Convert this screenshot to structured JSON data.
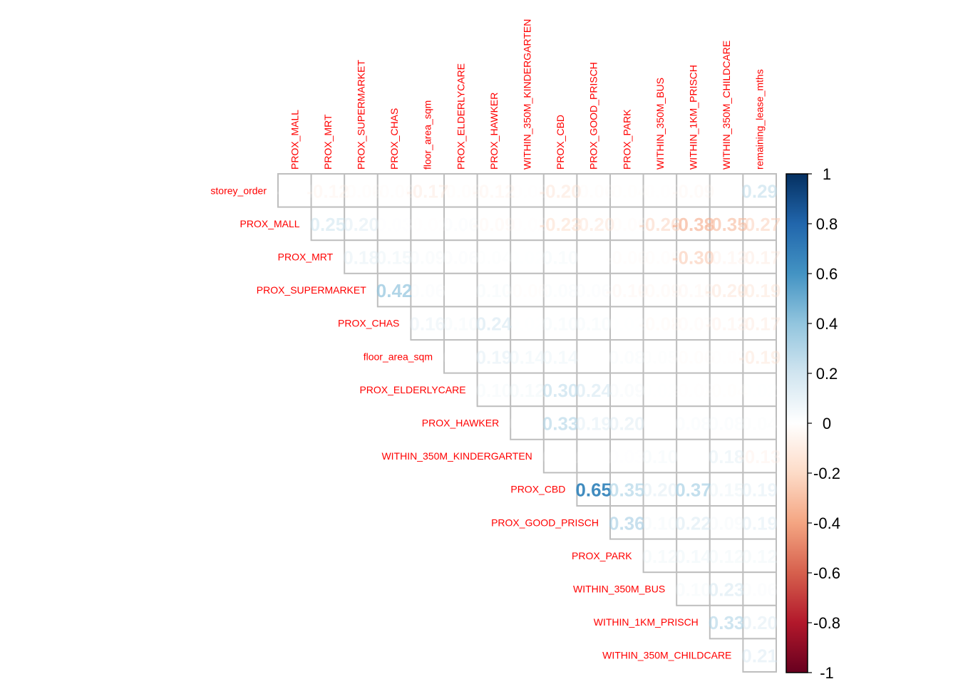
{
  "chart_data": {
    "type": "heatmap",
    "title": "",
    "subtype": "correlation-matrix-upper",
    "grid": true,
    "legend": "right",
    "row_labels": [
      "storey_order",
      "PROX_MALL",
      "PROX_MRT",
      "PROX_SUPERMARKET",
      "PROX_CHAS",
      "floor_area_sqm",
      "PROX_ELDERLYCARE",
      "PROX_HAWKER",
      "WITHIN_350M_KINDERGARTEN",
      "PROX_CBD",
      "PROX_GOOD_PRISCH",
      "PROX_PARK",
      "WITHIN_350M_BUS",
      "WITHIN_1KM_PRISCH",
      "WITHIN_350M_CHILDCARE"
    ],
    "col_labels": [
      "PROX_MALL",
      "PROX_MRT",
      "PROX_SUPERMARKET",
      "PROX_CHAS",
      "floor_area_sqm",
      "PROX_ELDERLYCARE",
      "PROX_HAWKER",
      "WITHIN_350M_KINDERGARTEN",
      "PROX_CBD",
      "PROX_GOOD_PRISCH",
      "PROX_PARK",
      "WITHIN_350M_BUS",
      "WITHIN_1KM_PRISCH",
      "WITHIN_350M_CHILDCARE",
      "remaining_lease_mths"
    ],
    "values": [
      [
        -0.01,
        -0.12,
        -0.06,
        -0.06,
        -0.17,
        -0.06,
        -0.12,
        -0.03,
        -0.2,
        -0.06,
        -0.04,
        -0.02,
        -0.09,
        0.0,
        0.29
      ],
      [
        null,
        0.25,
        0.2,
        0.03,
        -0.02,
        0.06,
        -0.09,
        -0.02,
        -0.23,
        -0.2,
        -0.06,
        -0.26,
        -0.38,
        -0.35,
        -0.27
      ],
      [
        null,
        null,
        0.18,
        0.15,
        0.09,
        0.06,
        0.04,
        0.02,
        0.1,
        0.01,
        -0.06,
        -0.06,
        -0.3,
        -0.13,
        -0.17
      ],
      [
        null,
        null,
        null,
        0.42,
        0.06,
        0.01,
        0.1,
        -0.06,
        0.08,
        0.06,
        -0.1,
        -0.09,
        -0.1,
        -0.2,
        -0.19
      ],
      [
        null,
        null,
        null,
        null,
        0.16,
        0.1,
        0.24,
        0.02,
        0.1,
        0.1,
        0.02,
        -0.08,
        -0.07,
        -0.13,
        -0.17
      ],
      [
        null,
        null,
        null,
        null,
        null,
        0.0,
        0.19,
        0.14,
        0.14,
        0.0,
        0.08,
        0.05,
        -0.06,
        -0.02,
        -0.19
      ],
      [
        null,
        null,
        null,
        null,
        null,
        null,
        0.1,
        0.12,
        0.3,
        0.24,
        0.09,
        0.02,
        -0.02,
        -0.04,
        0.02
      ],
      [
        null,
        null,
        null,
        null,
        null,
        null,
        null,
        0.0,
        0.33,
        0.19,
        0.2,
        -0.0,
        0.08,
        0.08,
        0.04
      ],
      [
        null,
        null,
        null,
        null,
        null,
        null,
        null,
        null,
        0.01,
        0.01,
        0.03,
        0.1,
        -0.0,
        0.18,
        -0.13
      ],
      [
        null,
        null,
        null,
        null,
        null,
        null,
        null,
        null,
        null,
        0.65,
        0.35,
        0.2,
        0.37,
        0.15,
        0.19
      ],
      [
        null,
        null,
        null,
        null,
        null,
        null,
        null,
        null,
        null,
        null,
        0.36,
        0.1,
        0.22,
        0.09,
        0.19
      ],
      [
        null,
        null,
        null,
        null,
        null,
        null,
        null,
        null,
        null,
        null,
        null,
        0.12,
        0.14,
        0.12,
        0.12
      ],
      [
        null,
        null,
        null,
        null,
        null,
        null,
        null,
        null,
        null,
        null,
        null,
        null,
        0.1,
        0.23,
        0.06
      ],
      [
        null,
        null,
        null,
        null,
        null,
        null,
        null,
        null,
        null,
        null,
        null,
        null,
        null,
        0.33,
        0.2
      ],
      [
        null,
        null,
        null,
        null,
        null,
        null,
        null,
        null,
        null,
        null,
        null,
        null,
        null,
        null,
        0.21
      ]
    ],
    "colorbar": {
      "range": [
        -1,
        1
      ],
      "ticks": [
        "1",
        "0.8",
        "0.6",
        "0.4",
        "0.2",
        "0",
        "-0.2",
        "-0.4",
        "-0.6",
        "-0.8",
        "-1"
      ],
      "tick_values": [
        1,
        0.8,
        0.6,
        0.4,
        0.2,
        0,
        -0.2,
        -0.4,
        -0.6,
        -0.8,
        -1
      ],
      "colors": [
        "#67001F",
        "#B2182B",
        "#D6604D",
        "#F4A582",
        "#FDDBC7",
        "#FFFFFF",
        "#D1E5F0",
        "#92C5DE",
        "#4393C3",
        "#2166AC",
        "#053061"
      ]
    },
    "label_color": "#FF0000"
  }
}
